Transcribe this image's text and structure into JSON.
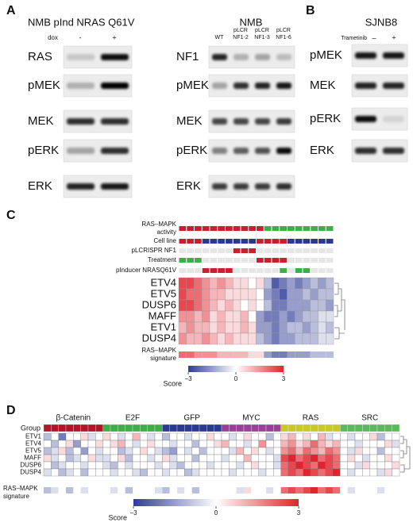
{
  "panels": {
    "A": {
      "label": "A",
      "left": {
        "title": "NMB pInd NRAS Q61V",
        "condition": "dox",
        "lanes": [
          "-",
          "+"
        ],
        "rows": [
          "RAS",
          "pMEK",
          "MEK",
          "pERK",
          "ERK"
        ]
      },
      "right": {
        "title": "NMB",
        "lanes": [
          [
            "WT"
          ],
          [
            "pLCR",
            "NF1-2"
          ],
          [
            "pLCR",
            "NF1-3"
          ],
          [
            "pLCR",
            "NF1-6"
          ]
        ],
        "rows": [
          "NF1",
          "pMEK",
          "MEK",
          "pERK",
          "ERK"
        ]
      }
    },
    "B": {
      "label": "B",
      "title": "SJNB8",
      "condition": "Trametinib",
      "lanes": [
        "–",
        "+"
      ],
      "rows": [
        "pMEK",
        "MEK",
        "pERK",
        "ERK"
      ]
    },
    "C": {
      "label": "C",
      "tracks": [
        {
          "label": [
            "RAS–MAPK",
            "activity"
          ],
          "colors": [
            "#c8202f",
            "#c8202f",
            "#c8202f",
            "#c8202f",
            "#c8202f",
            "#c8202f",
            "#c8202f",
            "#c8202f",
            "#c8202f",
            "#c8202f",
            "#c8202f",
            "#3fae49",
            "#3fae49",
            "#3fae49",
            "#3fae49",
            "#3fae49",
            "#3fae49",
            "#3fae49",
            "#3fae49",
            "#3fae49"
          ]
        },
        {
          "label": [
            "Cell line"
          ],
          "colors": [
            "#c8202f",
            "#c8202f",
            "#c8202f",
            "#2b3990",
            "#2b3990",
            "#2b3990",
            "#2b3990",
            "#2b3990",
            "#2b3990",
            "#2b3990",
            "#c8202f",
            "#c8202f",
            "#c8202f",
            "#c8202f",
            "#2b3990",
            "#2b3990",
            "#2b3990",
            "#2b3990",
            "#2b3990",
            "#2b3990"
          ]
        },
        {
          "label": [
            "pLCRISPR NF1"
          ],
          "colors": [
            "#e6e6e6",
            "#e6e6e6",
            "#e6e6e6",
            "#e6e6e6",
            "#e6e6e6",
            "#e6e6e6",
            "#e6e6e6",
            "#c8202f",
            "#c8202f",
            "#c8202f",
            "#e6e6e6",
            "#e6e6e6",
            "#e6e6e6",
            "#e6e6e6",
            "#e6e6e6",
            "#e6e6e6",
            "#e6e6e6",
            "#e6e6e6",
            "#e6e6e6",
            "#e6e6e6"
          ]
        },
        {
          "label": [
            "Treatment"
          ],
          "colors": [
            "#3fae49",
            "#3fae49",
            "#3fae49",
            "#e6e6e6",
            "#e6e6e6",
            "#e6e6e6",
            "#e6e6e6",
            "#e6e6e6",
            "#e6e6e6",
            "#e6e6e6",
            "#c8202f",
            "#c8202f",
            "#c8202f",
            "#c8202f",
            "#e6e6e6",
            "#e6e6e6",
            "#e6e6e6",
            "#e6e6e6",
            "#e6e6e6",
            "#e6e6e6"
          ]
        },
        {
          "label": [
            "pInducer NRASQ61V"
          ],
          "colors": [
            "#e6e6e6",
            "#e6e6e6",
            "#e6e6e6",
            "#c8202f",
            "#c8202f",
            "#c8202f",
            "#c8202f",
            "#e6e6e6",
            "#e6e6e6",
            "#e6e6e6",
            "#e6e6e6",
            "#e6e6e6",
            "#e6e6e6",
            "#3fae49",
            "#e6e6e6",
            "#3fae49",
            "#3fae49",
            "#e6e6e6",
            "#e6e6e6",
            "#e6e6e6"
          ]
        }
      ],
      "genes": [
        "ETV4",
        "ETV5",
        "DUSP6",
        "MAFF",
        "ETV1",
        "DUSP4"
      ],
      "values": [
        [
          2.5,
          2.5,
          2,
          1.5,
          1,
          1.5,
          1,
          0.5,
          0.5,
          0,
          0.5,
          -1,
          -2.5,
          -2,
          -1.5,
          -2,
          -1.5,
          -1,
          -1.5,
          -1
        ],
        [
          2.5,
          2,
          2,
          1.5,
          1,
          1,
          0.5,
          0.5,
          0.5,
          0.5,
          0,
          -1.5,
          -2,
          -2.5,
          -1.5,
          -1.5,
          -1,
          -1.5,
          -1,
          -1
        ],
        [
          2.5,
          2.5,
          2,
          1.5,
          1,
          0.5,
          1,
          0.5,
          0,
          0.5,
          0,
          -1,
          -2,
          -2,
          -1.5,
          -1.5,
          -1.5,
          -1,
          -1,
          -1.5
        ],
        [
          1.5,
          1.5,
          1,
          1.5,
          0.5,
          1,
          0.5,
          0.5,
          1,
          0,
          -1.5,
          -2,
          -2,
          -1.5,
          -2,
          -1.5,
          -1,
          -1,
          -0.5,
          -0.5
        ],
        [
          1,
          1.5,
          1,
          1,
          0.5,
          1,
          0.5,
          0.5,
          1,
          0.5,
          -1.5,
          -1.5,
          -2,
          -1.5,
          -1,
          -1,
          -1.5,
          -1,
          -0.5,
          -1
        ],
        [
          1.5,
          1,
          1,
          1.5,
          1,
          0.5,
          1,
          0.5,
          0.5,
          0.5,
          -1,
          -1.5,
          -2,
          -1.5,
          -1.5,
          -1,
          -1,
          -1,
          -0.5,
          -0.5
        ]
      ],
      "signature": {
        "label": [
          "RAS–MAPK",
          "signature"
        ],
        "values": [
          2,
          2,
          1.5,
          1.5,
          1.5,
          1,
          1,
          1,
          1,
          0.5,
          0.5,
          -1.5,
          -2,
          -2,
          -1.5,
          -1.5,
          -1.5,
          -1,
          -1,
          -1
        ]
      },
      "colorbar": {
        "label": "Score",
        "lim": [
          -3,
          3
        ],
        "ticks": [
          {
            "value": -3,
            "label": "−3"
          },
          0,
          3
        ],
        "low": "#2e3c96",
        "mid": "#ffffff",
        "high": "#e3222b"
      }
    },
    "D": {
      "label": "D",
      "group_label": "Group",
      "groups": [
        {
          "name": "β-Catenin",
          "color": "#b3142a",
          "size": 8
        },
        {
          "name": "E2F",
          "color": "#3fae49",
          "size": 8
        },
        {
          "name": "GFP",
          "color": "#2b3990",
          "size": 8
        },
        {
          "name": "MYC",
          "color": "#9b3f97",
          "size": 8
        },
        {
          "name": "RAS",
          "color": "#c8c828",
          "size": 8
        },
        {
          "name": "SRC",
          "color": "#5cb85c",
          "size": 8
        }
      ],
      "genes": [
        "ETV1",
        "ETV4",
        "ETV5",
        "MAFF",
        "DUSP6",
        "DUSP4"
      ],
      "values": [
        [
          -1,
          0,
          -2,
          0,
          0,
          0.5,
          -0.5,
          0,
          0.5,
          0,
          -0.5,
          0,
          1,
          0,
          -0.5,
          0,
          -1,
          0,
          0,
          -0.5,
          0,
          0,
          0.5,
          0,
          0,
          -0.5,
          0,
          0.5,
          0,
          0,
          -1,
          0,
          0.5,
          1,
          0,
          0.5,
          0,
          1,
          -0.5,
          0,
          0,
          -0.5,
          0,
          0,
          0.5,
          -1,
          0,
          0
        ],
        [
          0,
          -1,
          0,
          0.5,
          -1.5,
          0,
          0,
          0.5,
          0,
          0.5,
          1,
          0,
          -0.5,
          0,
          0.5,
          0,
          0,
          -0.5,
          0,
          0,
          -1,
          0,
          0,
          0.5,
          1,
          0,
          0,
          -0.5,
          0,
          1.5,
          0,
          0,
          1,
          1.5,
          0.5,
          1,
          2,
          1,
          0.5,
          1,
          0,
          0,
          -0.5,
          0,
          0,
          0,
          0.5,
          -0.5
        ],
        [
          -1,
          -0.5,
          0.5,
          -1,
          0,
          -1.5,
          0,
          -0.5,
          0,
          0,
          -1,
          -0.5,
          0,
          0.5,
          0,
          -0.5,
          -1,
          -1.5,
          0,
          -0.5,
          0,
          -1,
          0,
          0,
          0,
          -0.5,
          1,
          0,
          0.5,
          0,
          -0.5,
          0,
          1.5,
          2,
          1,
          2,
          1.5,
          1,
          2,
          1.5,
          0,
          -0.5,
          0.5,
          0,
          0,
          -1,
          0,
          0
        ],
        [
          0.5,
          -0.5,
          0,
          -1,
          -0.5,
          0,
          0.5,
          -0.5,
          -0.5,
          0,
          0.5,
          -1,
          0,
          0,
          -0.5,
          0,
          0.5,
          -0.5,
          0,
          0,
          -1,
          0,
          0,
          0,
          -0.5,
          0,
          0,
          1,
          0,
          0,
          0,
          -0.5,
          2.5,
          3,
          2,
          2.5,
          3,
          2,
          2.5,
          2,
          0,
          0.5,
          0,
          -0.5,
          0,
          0,
          0.5,
          0
        ],
        [
          0,
          -1,
          -0.5,
          0,
          0,
          -0.5,
          0,
          0,
          -0.5,
          -1,
          0,
          -0.5,
          0,
          0,
          0,
          -0.5,
          0,
          -0.5,
          -1,
          0,
          0,
          0,
          -0.5,
          0,
          0,
          0,
          -0.5,
          0,
          0.5,
          0,
          0,
          -0.5,
          2,
          2.5,
          3,
          2.5,
          2,
          3,
          2.5,
          2,
          0,
          0,
          -0.5,
          0.5,
          0,
          0,
          0,
          0.5
        ],
        [
          -0.5,
          0,
          -1,
          -0.5,
          0,
          -1,
          0,
          0,
          0,
          -0.5,
          0,
          0,
          -0.5,
          -1,
          0,
          0,
          -0.5,
          0,
          0,
          -1,
          -0.5,
          0,
          0,
          0,
          0,
          -0.5,
          0,
          0,
          0,
          -0.5,
          0,
          0,
          2,
          2.5,
          2,
          3,
          2.5,
          2,
          2.5,
          3,
          0,
          -0.5,
          0,
          0,
          0,
          -0.5,
          0.5,
          0
        ]
      ],
      "signature": {
        "label": [
          "RAS–MAPK",
          "signature"
        ],
        "values": [
          -1,
          -0.5,
          0,
          -1,
          0,
          -0.5,
          0,
          0,
          0,
          -0.5,
          0,
          -1,
          0,
          0,
          0,
          -0.5,
          -1,
          0,
          -0.5,
          0,
          -1,
          0,
          0,
          0,
          0,
          0,
          -0.5,
          0.5,
          0,
          0,
          -0.5,
          0,
          2,
          2.5,
          2,
          2.5,
          3,
          2,
          2.5,
          2,
          0,
          -0.5,
          0,
          0,
          0,
          -0.5,
          0,
          0
        ]
      },
      "colorbar": {
        "label": "Score",
        "lim": [
          -3,
          3
        ],
        "ticks": [
          {
            "value": -3,
            "label": "−3"
          },
          0,
          3
        ],
        "low": "#2e3c96",
        "mid": "#ffffff",
        "high": "#e3222b"
      }
    }
  }
}
